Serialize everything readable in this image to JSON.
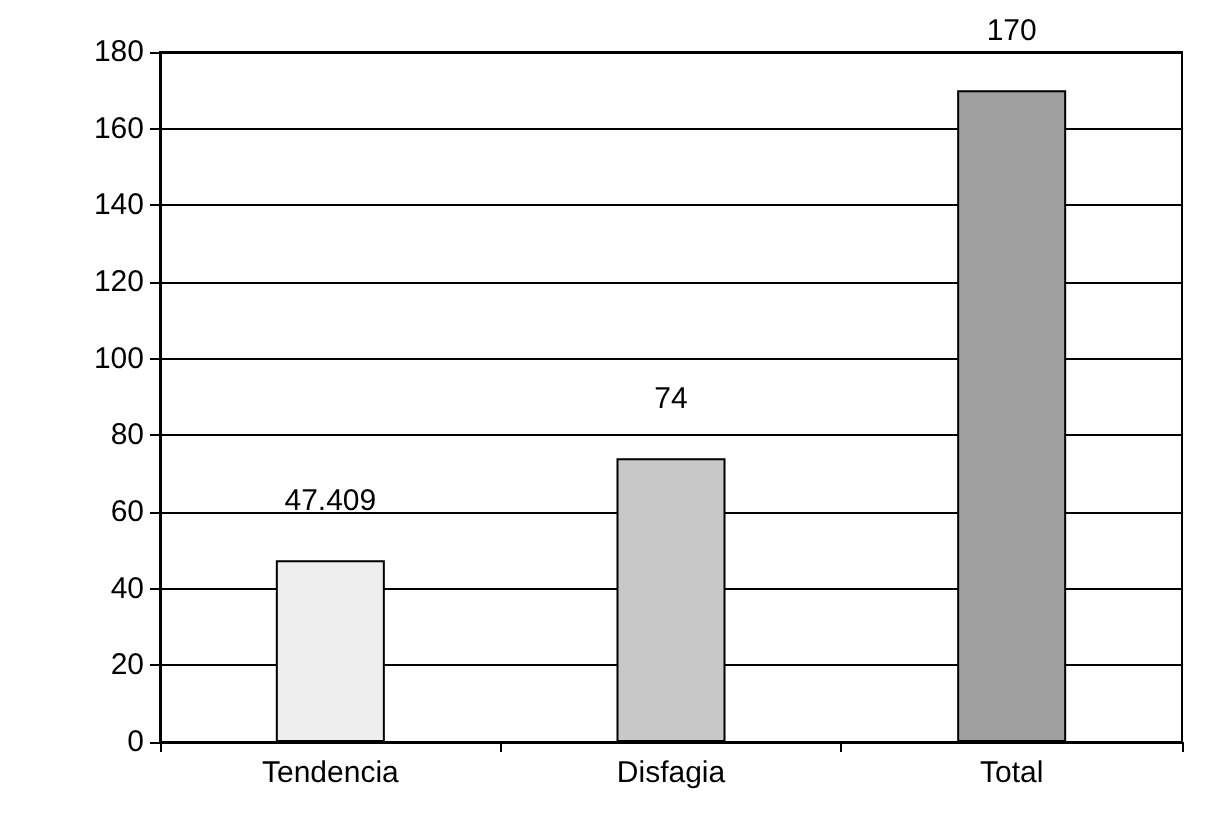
{
  "chart_data": {
    "type": "bar",
    "categories": [
      "Tendencia",
      "Disfagia",
      "Total"
    ],
    "values": [
      47.409,
      74,
      170
    ],
    "colors": [
      "#eeeeee",
      "#c8c8c8",
      "#a0a0a0"
    ],
    "ylim": [
      0,
      180
    ],
    "yticks": [
      0,
      20,
      40,
      60,
      80,
      100,
      120,
      140,
      160,
      180
    ],
    "grid": "y",
    "data_labels": true
  }
}
